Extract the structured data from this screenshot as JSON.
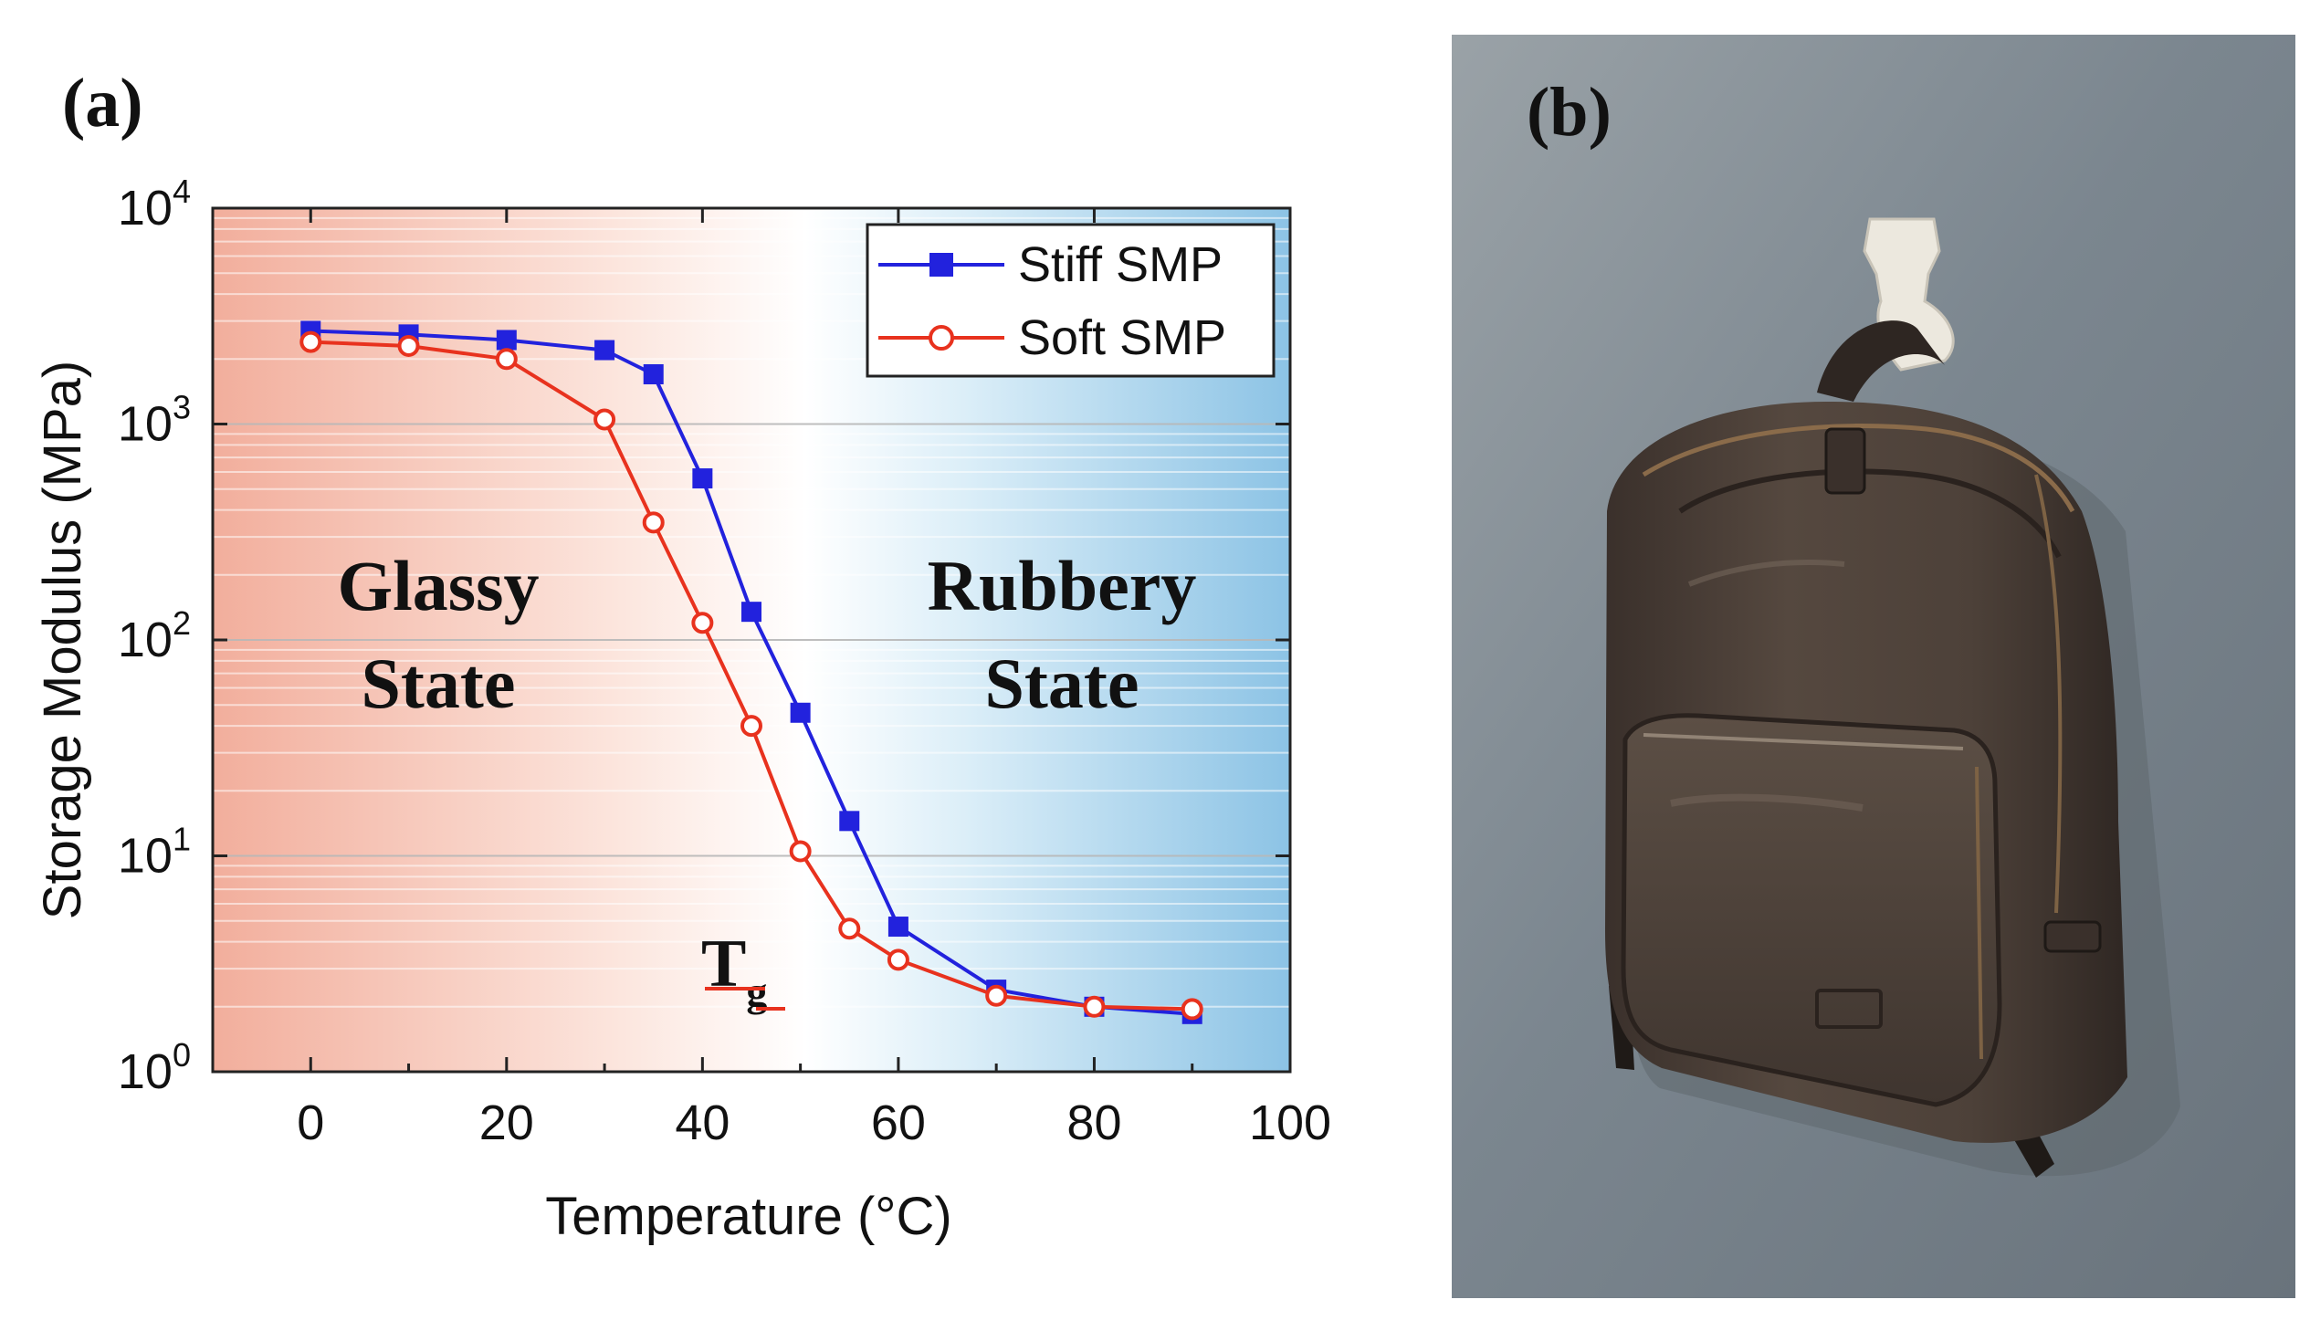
{
  "panel_a": {
    "label": "(a)"
  },
  "panel_b": {
    "label": "(b)"
  },
  "annotations": {
    "glassy_line1": "Glassy",
    "glassy_line2": "State",
    "rubbery_line1": "Rubbery",
    "rubbery_line2": "State",
    "tg_main": "T",
    "tg_sub": "g"
  },
  "chart_data": {
    "type": "line",
    "title": "",
    "xlabel": "Temperature (°C)",
    "ylabel": "Storage Modulus (MPa)",
    "xlim": [
      -10,
      100
    ],
    "ylim": [
      1,
      10000
    ],
    "yscale": "log",
    "xticks": [
      0,
      20,
      40,
      60,
      80,
      100
    ],
    "xtick_labels": [
      "0",
      "20",
      "40",
      "60",
      "80",
      "100"
    ],
    "yticks": [
      1,
      10,
      100,
      1000,
      10000
    ],
    "ytick_base": "10",
    "ytick_exponents": [
      "0",
      "1",
      "2",
      "3",
      "4"
    ],
    "legend_position": "top-right",
    "series": [
      {
        "name": "Stiff SMP",
        "color": "#2222dd",
        "marker": "filled-square",
        "x": [
          0,
          10,
          20,
          30,
          35,
          40,
          45,
          50,
          55,
          60,
          70,
          80,
          90
        ],
        "y": [
          2700,
          2600,
          2450,
          2200,
          1700,
          560,
          135,
          46,
          14.5,
          4.7,
          2.4,
          2.0,
          1.85
        ]
      },
      {
        "name": "Soft SMP",
        "color": "#e8321e",
        "marker": "open-circle",
        "x": [
          0,
          10,
          20,
          30,
          35,
          40,
          45,
          50,
          55,
          60,
          70,
          80,
          90
        ],
        "y": [
          2400,
          2300,
          2000,
          1050,
          350,
          120,
          40,
          10.5,
          4.6,
          3.3,
          2.25,
          2.0,
          1.95
        ]
      }
    ]
  },
  "colors": {
    "glassy_bg": "#f4b8a8",
    "rubbery_bg": "#8cc2e4",
    "wall": "#7d8891",
    "bag": "#4a3f38"
  }
}
